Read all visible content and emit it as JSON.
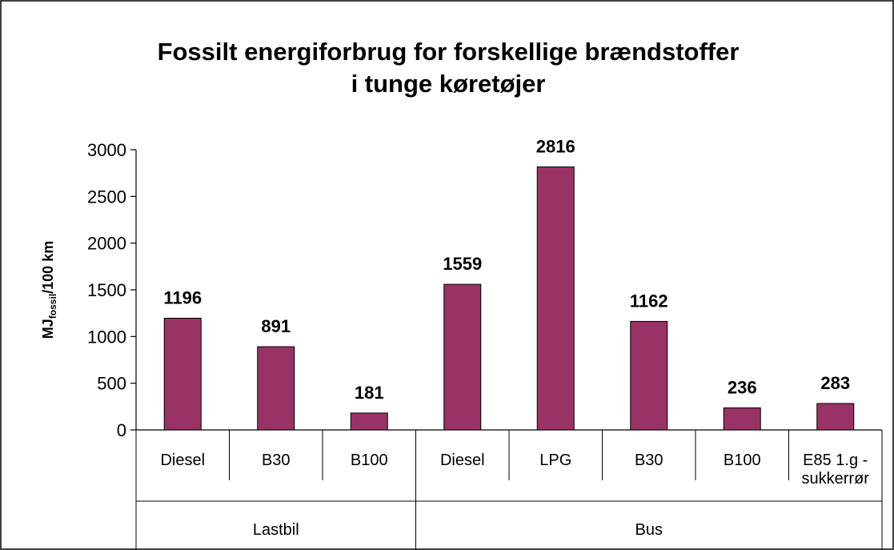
{
  "chart_data": {
    "type": "bar",
    "title": [
      "Fossilt energiforbrug for forskellige brændstoffer",
      "i tunge køretøjer"
    ],
    "y_label": {
      "main": "MJ",
      "sub": "fossil",
      "rest": "/100 km"
    },
    "categories": [
      "Diesel",
      "B30",
      "B100",
      "Diesel",
      "LPG",
      "B30",
      "B100",
      "E85 1.g - sukkerrør"
    ],
    "groups": [
      "Lastbil",
      "Lastbil",
      "Lastbil",
      "Bus",
      "Bus",
      "Bus",
      "Bus",
      "Bus"
    ],
    "values": [
      1196,
      891,
      181,
      1559,
      2816,
      1162,
      236,
      283
    ],
    "color": "#993366",
    "ylim": [
      0,
      3000
    ],
    "yticks": [
      0,
      500,
      1000,
      1500,
      2000,
      2500,
      3000
    ],
    "grid": false
  }
}
